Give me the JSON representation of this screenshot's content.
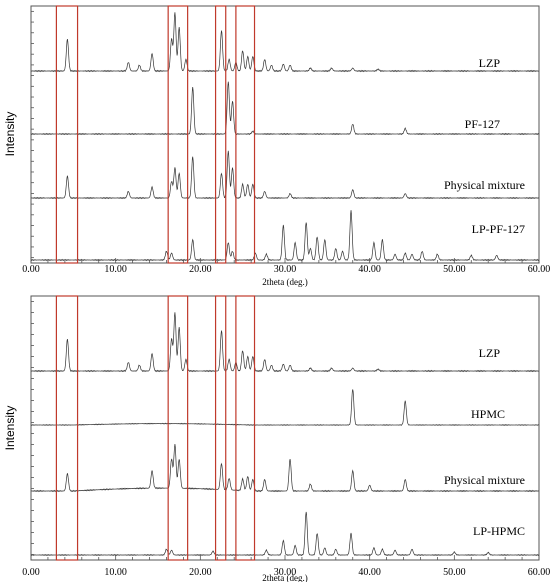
{
  "chart_data": [
    {
      "type": "line",
      "xlabel": "2theta (deg.)",
      "ylabel": "Intensity",
      "xlim": [
        0,
        60
      ],
      "x_ticks": [
        "0.00",
        "10.00",
        "20.00",
        "30.00",
        "40.00",
        "50.00",
        "60.00"
      ],
      "highlight_regions": [
        [
          3.0,
          5.5
        ],
        [
          16.2,
          18.5
        ],
        [
          21.8,
          23.0
        ],
        [
          24.2,
          26.4
        ]
      ],
      "region_color": "#c0392b",
      "series": [
        {
          "name": "LZP",
          "peaks": [
            [
              4.3,
              0.55
            ],
            [
              11.5,
              0.15
            ],
            [
              12.8,
              0.1
            ],
            [
              14.3,
              0.3
            ],
            [
              16.6,
              0.55
            ],
            [
              17.0,
              1.0
            ],
            [
              17.5,
              0.75
            ],
            [
              18.3,
              0.2
            ],
            [
              22.5,
              0.7
            ],
            [
              23.4,
              0.2
            ],
            [
              24.2,
              0.15
            ],
            [
              25.0,
              0.35
            ],
            [
              25.6,
              0.25
            ],
            [
              26.2,
              0.25
            ],
            [
              27.6,
              0.2
            ],
            [
              28.4,
              0.1
            ],
            [
              29.8,
              0.12
            ],
            [
              30.6,
              0.1
            ],
            [
              33.0,
              0.05
            ],
            [
              35.5,
              0.05
            ],
            [
              38.0,
              0.05
            ],
            [
              41.0,
              0.03
            ]
          ]
        },
        {
          "name": "PF-127",
          "peaks": [
            [
              19.1,
              0.85
            ],
            [
              23.3,
              0.95
            ],
            [
              23.8,
              0.6
            ],
            [
              26.2,
              0.05
            ],
            [
              38.0,
              0.18
            ],
            [
              44.2,
              0.1
            ]
          ]
        },
        {
          "name": "Physical mixture",
          "peaks": [
            [
              4.3,
              0.4
            ],
            [
              11.5,
              0.12
            ],
            [
              14.3,
              0.2
            ],
            [
              16.6,
              0.3
            ],
            [
              17.0,
              0.55
            ],
            [
              17.5,
              0.45
            ],
            [
              19.1,
              0.75
            ],
            [
              22.5,
              0.45
            ],
            [
              23.3,
              0.85
            ],
            [
              23.8,
              0.55
            ],
            [
              25.0,
              0.25
            ],
            [
              25.6,
              0.25
            ],
            [
              26.2,
              0.25
            ],
            [
              27.6,
              0.12
            ],
            [
              30.6,
              0.08
            ],
            [
              38.0,
              0.15
            ],
            [
              44.2,
              0.08
            ]
          ]
        },
        {
          "name": "LP-PF-127",
          "peaks": [
            [
              16.0,
              0.15
            ],
            [
              16.6,
              0.12
            ],
            [
              19.1,
              0.35
            ],
            [
              23.3,
              0.3
            ],
            [
              23.8,
              0.15
            ],
            [
              26.5,
              0.12
            ],
            [
              27.8,
              0.1
            ],
            [
              29.8,
              0.6
            ],
            [
              31.2,
              0.3
            ],
            [
              32.5,
              0.65
            ],
            [
              33.0,
              0.2
            ],
            [
              33.8,
              0.4
            ],
            [
              34.7,
              0.35
            ],
            [
              36.0,
              0.2
            ],
            [
              36.8,
              0.15
            ],
            [
              37.8,
              0.85
            ],
            [
              40.5,
              0.3
            ],
            [
              41.5,
              0.35
            ],
            [
              43.0,
              0.1
            ],
            [
              44.2,
              0.12
            ],
            [
              45.0,
              0.1
            ],
            [
              46.2,
              0.15
            ],
            [
              48.0,
              0.1
            ],
            [
              52.0,
              0.08
            ],
            [
              55.0,
              0.08
            ]
          ]
        }
      ]
    },
    {
      "type": "line",
      "xlabel": "2theta (deg.)",
      "ylabel": "Intensity",
      "xlim": [
        0,
        60
      ],
      "x_ticks": [
        "0.00",
        "10.00",
        "20.00",
        "30.00",
        "40.00",
        "50.00",
        "60.00"
      ],
      "highlight_regions": [
        [
          3.0,
          5.5
        ],
        [
          16.2,
          18.5
        ],
        [
          21.8,
          23.0
        ],
        [
          24.2,
          26.4
        ]
      ],
      "region_color": "#c0392b",
      "series": [
        {
          "name": "LZP",
          "peaks": [
            [
              4.3,
              0.55
            ],
            [
              11.5,
              0.15
            ],
            [
              12.8,
              0.1
            ],
            [
              14.3,
              0.3
            ],
            [
              16.6,
              0.55
            ],
            [
              17.0,
              1.0
            ],
            [
              17.5,
              0.75
            ],
            [
              18.3,
              0.2
            ],
            [
              22.5,
              0.7
            ],
            [
              23.4,
              0.2
            ],
            [
              24.2,
              0.15
            ],
            [
              25.0,
              0.35
            ],
            [
              25.6,
              0.25
            ],
            [
              26.2,
              0.25
            ],
            [
              27.6,
              0.2
            ],
            [
              28.4,
              0.1
            ],
            [
              29.8,
              0.12
            ],
            [
              30.6,
              0.1
            ],
            [
              33.0,
              0.05
            ],
            [
              35.5,
              0.05
            ],
            [
              38.0,
              0.05
            ],
            [
              41.0,
              0.03
            ]
          ]
        },
        {
          "name": "HPMC",
          "peaks": [
            [
              38.0,
              0.9
            ],
            [
              44.2,
              0.6
            ]
          ],
          "halo": [
            5,
            26,
            0.035
          ]
        },
        {
          "name": "Physical mixture",
          "peaks": [
            [
              4.3,
              0.3
            ],
            [
              14.3,
              0.3
            ],
            [
              16.6,
              0.5
            ],
            [
              17.0,
              0.75
            ],
            [
              17.5,
              0.5
            ],
            [
              22.5,
              0.45
            ],
            [
              23.4,
              0.2
            ],
            [
              25.0,
              0.2
            ],
            [
              25.6,
              0.25
            ],
            [
              26.2,
              0.2
            ],
            [
              27.6,
              0.2
            ],
            [
              30.6,
              0.55
            ],
            [
              33.0,
              0.12
            ],
            [
              38.0,
              0.35
            ],
            [
              40.0,
              0.1
            ],
            [
              44.2,
              0.2
            ]
          ],
          "halo": [
            5,
            26,
            0.05
          ]
        },
        {
          "name": "LP-HPMC",
          "peaks": [
            [
              16.0,
              0.12
            ],
            [
              16.6,
              0.1
            ],
            [
              21.5,
              0.08
            ],
            [
              27.8,
              0.1
            ],
            [
              29.8,
              0.3
            ],
            [
              31.2,
              0.2
            ],
            [
              32.5,
              0.9
            ],
            [
              33.8,
              0.45
            ],
            [
              34.7,
              0.15
            ],
            [
              36.0,
              0.12
            ],
            [
              37.8,
              0.45
            ],
            [
              40.5,
              0.15
            ],
            [
              41.5,
              0.12
            ],
            [
              43.0,
              0.1
            ],
            [
              45.0,
              0.12
            ],
            [
              50.0,
              0.06
            ],
            [
              54.0,
              0.05
            ]
          ]
        }
      ]
    }
  ]
}
